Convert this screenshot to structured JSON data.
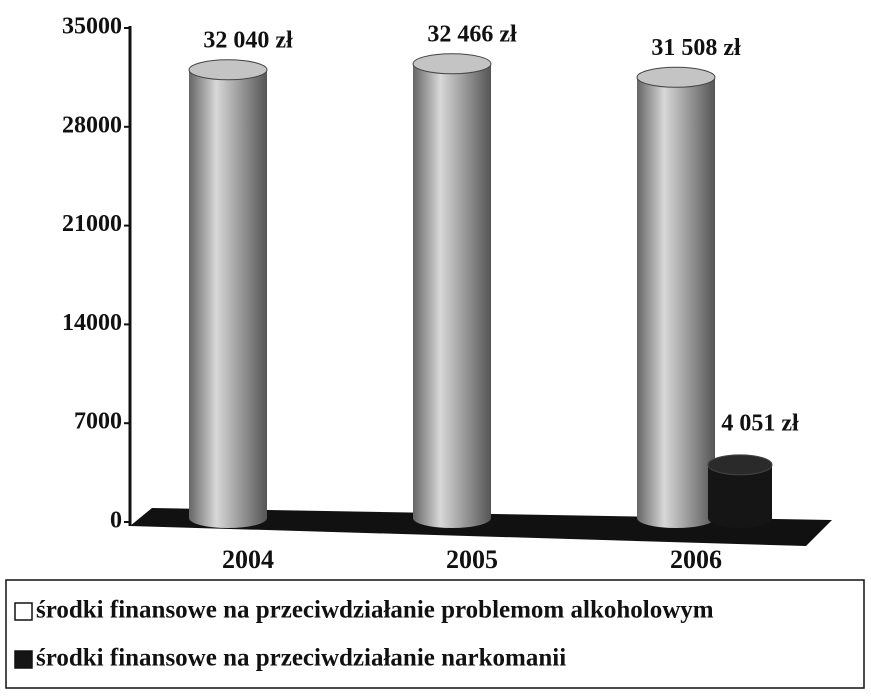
{
  "chart_data": {
    "type": "bar",
    "categories": [
      "2004",
      "2005",
      "2006"
    ],
    "series": [
      {
        "name": "środki finansowe na przeciwdziałanie problemom alkoholowym",
        "color": "#a8a8a8",
        "values": [
          32040,
          32466,
          31508
        ],
        "value_labels": [
          "32 040 zł",
          "32 466 zł",
          "31 508 zł"
        ]
      },
      {
        "name": "środki finansowe na przeciwdziałanie narkomanii",
        "color": "#151515",
        "values": [
          null,
          null,
          4051
        ],
        "value_labels": [
          null,
          null,
          "4 051 zł"
        ]
      }
    ],
    "ylim": [
      0,
      35000
    ],
    "yticks": [
      0,
      7000,
      14000,
      21000,
      28000,
      35000
    ],
    "legend": "bottom"
  }
}
